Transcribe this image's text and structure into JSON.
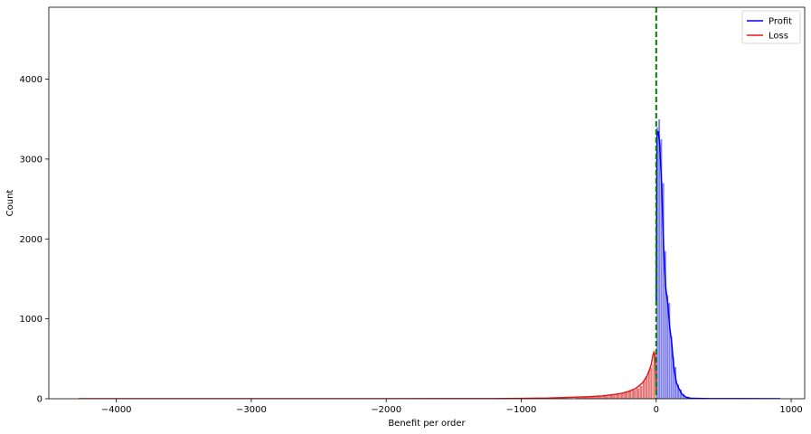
{
  "chart_data": {
    "type": "histogram",
    "xlabel": "Benefit per order",
    "ylabel": "Count",
    "xlim": [
      -4500,
      1100
    ],
    "ylim": [
      0,
      4900
    ],
    "xticks": [
      {
        "value": -4000,
        "label": "−4000"
      },
      {
        "value": -3000,
        "label": "−3000"
      },
      {
        "value": -2000,
        "label": "−2000"
      },
      {
        "value": -1000,
        "label": "−1000"
      },
      {
        "value": 0,
        "label": "0"
      },
      {
        "value": 1000,
        "label": "1000"
      }
    ],
    "yticks": [
      {
        "value": 0,
        "label": "0"
      },
      {
        "value": 1000,
        "label": "1000"
      },
      {
        "value": 2000,
        "label": "2000"
      },
      {
        "value": 3000,
        "label": "3000"
      },
      {
        "value": 4000,
        "label": "4000"
      }
    ],
    "grid": false,
    "legend_position": "top-right",
    "reference_line": {
      "x": 0,
      "color": "#008000",
      "style": "dashed"
    },
    "series": [
      {
        "name": "Profit",
        "color": "#0000ff",
        "fill": "#6b6bea",
        "bins": [
          [
            0,
            3400
          ],
          [
            15,
            3500
          ],
          [
            30,
            3250
          ],
          [
            45,
            2700
          ],
          [
            60,
            1850
          ],
          [
            75,
            1300
          ],
          [
            90,
            1200
          ],
          [
            105,
            780
          ],
          [
            120,
            520
          ],
          [
            135,
            400
          ],
          [
            150,
            180
          ],
          [
            170,
            120
          ],
          [
            190,
            60
          ],
          [
            210,
            25
          ],
          [
            240,
            5
          ]
        ],
        "kde": [
          [
            0,
            1200
          ],
          [
            6,
            3300
          ],
          [
            15,
            3350
          ],
          [
            25,
            3200
          ],
          [
            40,
            2700
          ],
          [
            55,
            1900
          ],
          [
            70,
            1400
          ],
          [
            85,
            1200
          ],
          [
            100,
            900
          ],
          [
            115,
            700
          ],
          [
            130,
            400
          ],
          [
            150,
            200
          ],
          [
            170,
            120
          ],
          [
            190,
            60
          ],
          [
            220,
            20
          ],
          [
            260,
            5
          ],
          [
            400,
            2
          ],
          [
            600,
            1
          ],
          [
            920,
            0
          ]
        ]
      },
      {
        "name": "Loss",
        "color": "#e41a1c",
        "fill": "#e06060",
        "bins": [
          [
            -1000,
            3
          ],
          [
            -800,
            5
          ],
          [
            -700,
            8
          ],
          [
            -600,
            15
          ],
          [
            -550,
            22
          ],
          [
            -500,
            25
          ],
          [
            -450,
            28
          ],
          [
            -400,
            35
          ],
          [
            -350,
            45
          ],
          [
            -300,
            60
          ],
          [
            -270,
            70
          ],
          [
            -240,
            80
          ],
          [
            -210,
            95
          ],
          [
            -180,
            110
          ],
          [
            -150,
            130
          ],
          [
            -125,
            160
          ],
          [
            -100,
            220
          ],
          [
            -80,
            280
          ],
          [
            -60,
            360
          ],
          [
            -45,
            390
          ],
          [
            -30,
            430
          ],
          [
            -20,
            600
          ],
          [
            -10,
            560
          ]
        ],
        "kde": [
          [
            -4280,
            0
          ],
          [
            -3000,
            0
          ],
          [
            -2000,
            0
          ],
          [
            -1500,
            1
          ],
          [
            -1200,
            2
          ],
          [
            -1000,
            4
          ],
          [
            -800,
            8
          ],
          [
            -600,
            20
          ],
          [
            -500,
            25
          ],
          [
            -400,
            35
          ],
          [
            -300,
            55
          ],
          [
            -250,
            70
          ],
          [
            -200,
            95
          ],
          [
            -150,
            130
          ],
          [
            -100,
            200
          ],
          [
            -70,
            280
          ],
          [
            -50,
            360
          ],
          [
            -35,
            440
          ],
          [
            -25,
            540
          ],
          [
            -18,
            580
          ],
          [
            -12,
            560
          ],
          [
            -6,
            420
          ],
          [
            -2,
            200
          ],
          [
            0,
            50
          ]
        ]
      }
    ]
  }
}
